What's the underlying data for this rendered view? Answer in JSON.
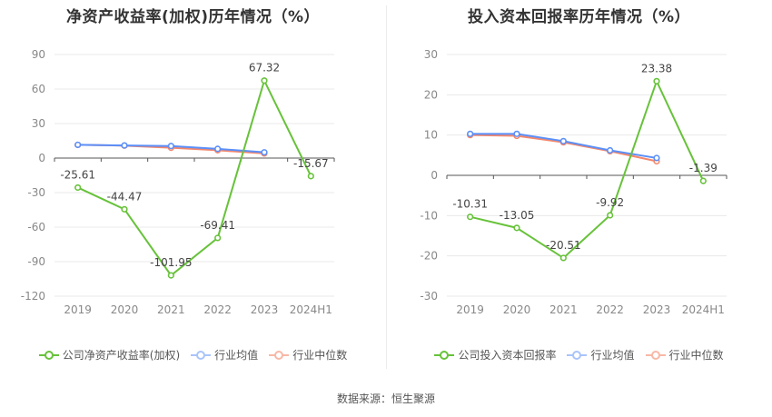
{
  "source_label": "数据来源：恒生聚源",
  "colors": {
    "company": "#67c23a",
    "industry_avg": "#5b8ff9",
    "industry_median": "#f4876b",
    "grid": "#e8e8e8",
    "axis": "#999999",
    "text": "#666666"
  },
  "chart_data": [
    {
      "type": "line",
      "title": "净资产收益率(加权)历年情况（%）",
      "categories": [
        "2019",
        "2020",
        "2021",
        "2022",
        "2023",
        "2024H1"
      ],
      "ylim": [
        -120,
        90
      ],
      "yticks": [
        90,
        60,
        30,
        0,
        -30,
        -60,
        -90,
        -120
      ],
      "grid": true,
      "legend": "bottom",
      "series": [
        {
          "name": "公司净资产收益率(加权)",
          "key": "company",
          "values": [
            -25.61,
            -44.47,
            -101.95,
            -69.41,
            67.32,
            -15.67
          ],
          "labels": [
            "-25.61",
            "-44.47",
            "-101.95",
            "-69.41",
            "67.32",
            "-15.67"
          ]
        },
        {
          "name": "行业均值",
          "key": "industry_avg",
          "values": [
            11.5,
            11.0,
            10.5,
            8.0,
            5.0,
            null
          ]
        },
        {
          "name": "行业中位数",
          "key": "industry_median",
          "values": [
            11.5,
            10.8,
            9.0,
            6.8,
            4.0,
            null
          ]
        }
      ]
    },
    {
      "type": "line",
      "title": "投入资本回报率历年情况（%）",
      "categories": [
        "2019",
        "2020",
        "2021",
        "2022",
        "2023",
        "2024H1"
      ],
      "ylim": [
        -30,
        30
      ],
      "yticks": [
        30,
        20,
        10,
        0,
        -10,
        -20,
        -30
      ],
      "grid": true,
      "legend": "bottom",
      "series": [
        {
          "name": "公司投入资本回报率",
          "key": "company",
          "values": [
            -10.31,
            -13.05,
            -20.51,
            -9.92,
            23.38,
            -1.39
          ],
          "labels": [
            "-10.31",
            "-13.05",
            "-20.51",
            "-9.92",
            "23.38",
            "-1.39"
          ]
        },
        {
          "name": "行业均值",
          "key": "industry_avg",
          "values": [
            10.3,
            10.3,
            8.5,
            6.2,
            4.3,
            null
          ]
        },
        {
          "name": "行业中位数",
          "key": "industry_median",
          "values": [
            10.0,
            9.8,
            8.2,
            6.0,
            3.5,
            null
          ]
        }
      ]
    }
  ]
}
